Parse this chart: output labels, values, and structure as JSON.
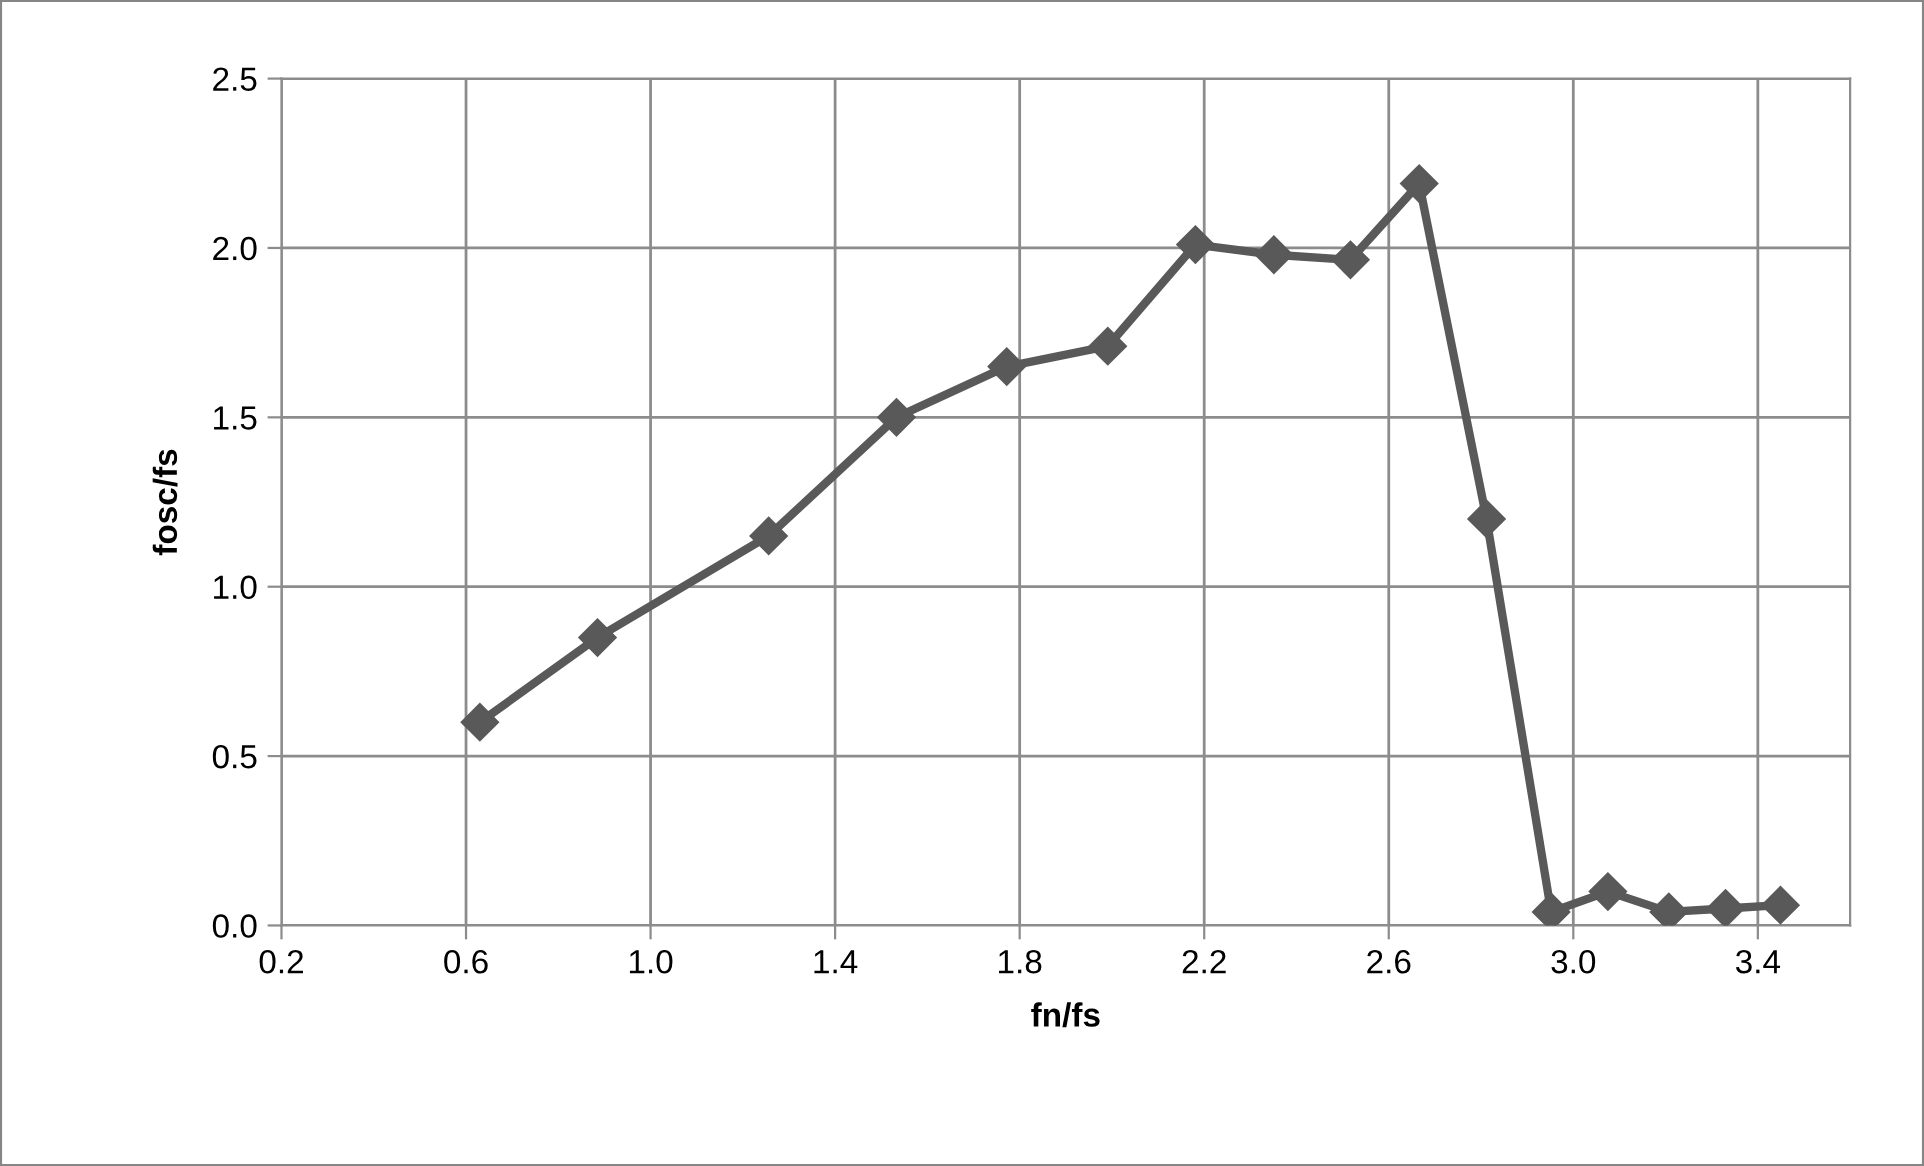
{
  "chart_data": {
    "type": "line",
    "xlabel": "fn/fs",
    "ylabel": "fosc/fs",
    "series": [
      {
        "color": "#595959",
        "x": [
          0.63,
          0.885,
          1.256,
          1.533,
          1.772,
          1.991,
          2.181,
          2.351,
          2.517,
          2.666,
          2.812,
          2.952,
          3.075,
          3.207,
          3.33,
          3.449
        ],
        "values": [
          0.6,
          0.85,
          1.15,
          1.5,
          1.65,
          1.71,
          2.01,
          1.98,
          1.965,
          2.19,
          1.2,
          0.04,
          0.1,
          0.04,
          0.05,
          0.06
        ]
      }
    ],
    "xlim": [
      0.2,
      3.6
    ],
    "xticks": [
      {
        "value": 0.2,
        "label": "0.2"
      },
      {
        "value": 0.6,
        "label": "0.6"
      },
      {
        "value": 1.0,
        "label": "1.0"
      },
      {
        "value": 1.4,
        "label": "1.4"
      },
      {
        "value": 1.8,
        "label": "1.8"
      },
      {
        "value": 2.2,
        "label": "2.2"
      },
      {
        "value": 2.6,
        "label": "2.6"
      },
      {
        "value": 3.0,
        "label": "3.0"
      },
      {
        "value": 3.4,
        "label": "3.4"
      }
    ],
    "ylim": [
      0,
      2.5
    ],
    "yticks": [
      {
        "value": 0,
        "label": "0.0"
      },
      {
        "value": 0.5,
        "label": "0.5"
      },
      {
        "value": 1.0,
        "label": "1.0"
      },
      {
        "value": 1.5,
        "label": "1.5"
      },
      {
        "value": 2.0,
        "label": "2.0"
      },
      {
        "value": 2.5,
        "label": "2.5"
      }
    ],
    "grid": true,
    "marker": "diamond",
    "line_style": "solid",
    "legend": false
  }
}
